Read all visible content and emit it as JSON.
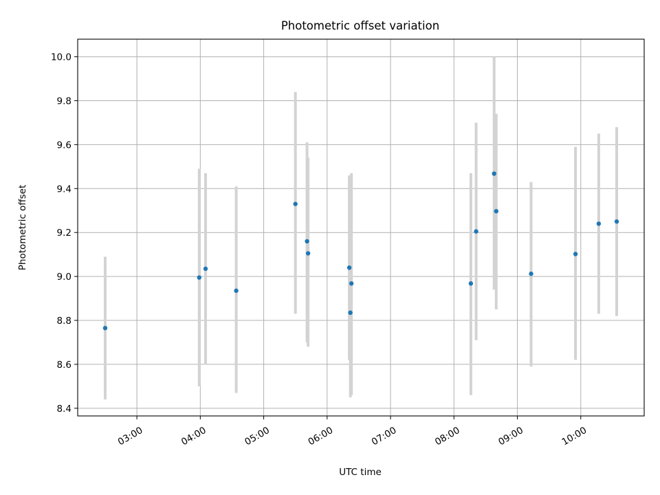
{
  "chart_data": {
    "type": "scatter",
    "title": "Photometric offset variation",
    "xlabel": "UTC time",
    "ylabel": "Photometric offset",
    "xlim": [
      "02:04",
      "11:00"
    ],
    "ylim": [
      8.365,
      10.08
    ],
    "grid": true,
    "x_ticks": [
      "03:00",
      "04:00",
      "05:00",
      "06:00",
      "07:00",
      "08:00",
      "09:00",
      "10:00"
    ],
    "y_ticks": [
      8.4,
      8.6,
      8.8,
      9.0,
      9.2,
      9.4,
      9.6,
      9.8,
      10.0
    ],
    "y_tick_labels": [
      "8.4",
      "8.6",
      "8.8",
      "9.0",
      "9.2",
      "9.4",
      "9.6",
      "9.8",
      "10.0"
    ],
    "series": [
      {
        "points": [
          {
            "x": "02:30",
            "y": 8.765,
            "err_low": 8.44,
            "err_high": 9.09
          },
          {
            "x": "03:59",
            "y": 8.995,
            "err_low": 8.5,
            "err_high": 9.49
          },
          {
            "x": "04:05",
            "y": 9.035,
            "err_low": 8.6,
            "err_high": 9.47
          },
          {
            "x": "04:34",
            "y": 8.935,
            "err_low": 8.47,
            "err_high": 9.41
          },
          {
            "x": "05:30",
            "y": 9.33,
            "err_low": 8.83,
            "err_high": 9.84
          },
          {
            "x": "05:41",
            "y": 9.16,
            "err_low": 8.7,
            "err_high": 9.61
          },
          {
            "x": "05:42",
            "y": 9.105,
            "err_low": 8.68,
            "err_high": 9.54
          },
          {
            "x": "06:21",
            "y": 9.04,
            "err_low": 8.62,
            "err_high": 9.46
          },
          {
            "x": "06:22",
            "y": 8.835,
            "err_low": 8.45,
            "err_high": 9.43
          },
          {
            "x": "06:23",
            "y": 8.968,
            "err_low": 8.46,
            "err_high": 9.47
          },
          {
            "x": "08:16",
            "y": 8.968,
            "err_low": 8.46,
            "err_high": 9.47
          },
          {
            "x": "08:21",
            "y": 9.205,
            "err_low": 8.71,
            "err_high": 9.7
          },
          {
            "x": "08:38",
            "y": 9.468,
            "err_low": 8.94,
            "err_high": 10.0
          },
          {
            "x": "08:40",
            "y": 9.297,
            "err_low": 8.85,
            "err_high": 9.74
          },
          {
            "x": "09:13",
            "y": 9.012,
            "err_low": 8.59,
            "err_high": 9.43
          },
          {
            "x": "09:55",
            "y": 9.102,
            "err_low": 8.62,
            "err_high": 9.59
          },
          {
            "x": "10:17",
            "y": 9.24,
            "err_low": 8.83,
            "err_high": 9.65
          },
          {
            "x": "10:34",
            "y": 9.25,
            "err_low": 8.82,
            "err_high": 9.68
          }
        ]
      }
    ]
  },
  "colors": {
    "point": "#1f77b4",
    "error_bar": "#d3d3d3",
    "grid": "#b0b0b0"
  }
}
